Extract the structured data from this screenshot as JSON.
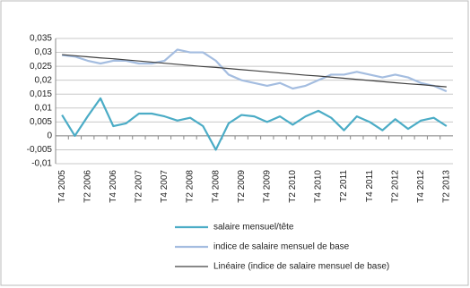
{
  "chart_data": {
    "type": "line",
    "categories": [
      "T4 2005",
      null,
      "T2 2006",
      null,
      "T4 2006",
      null,
      "T2 2007",
      null,
      "T4 2007",
      null,
      "T2 2008",
      null,
      "T4 2008",
      null,
      "T2 2009",
      null,
      "T4 2009",
      null,
      "T2 2010",
      null,
      "T4 2010",
      null,
      "T2 2011",
      null,
      "T4 2011",
      null,
      "T2 2012",
      null,
      "T4 2012",
      null,
      "T2 2013"
    ],
    "series": [
      {
        "name": "salaire mensuel/tête",
        "color": "#4bacc6",
        "values": [
          0.0075,
          0,
          0.007,
          0.0135,
          0.0035,
          0.0045,
          0.008,
          0.008,
          0.007,
          0.0055,
          0.0065,
          0.0035,
          -0.005,
          0.0045,
          0.0075,
          0.007,
          0.005,
          0.007,
          0.004,
          0.007,
          0.009,
          0.0065,
          0.002,
          0.007,
          0.005,
          0.002,
          0.006,
          0.0025,
          0.0055,
          0.0065,
          0.0035
        ]
      },
      {
        "name": "indice de salaire mensuel de base",
        "color": "#a4bde0",
        "values": [
          0.029,
          0.0285,
          0.027,
          0.026,
          0.027,
          0.027,
          0.026,
          0.026,
          0.027,
          0.031,
          0.03,
          0.03,
          0.027,
          0.022,
          0.02,
          0.019,
          0.018,
          0.019,
          0.017,
          0.018,
          0.02,
          0.022,
          0.022,
          0.023,
          0.022,
          0.021,
          0.022,
          0.021,
          0.019,
          0.018,
          0.016
        ]
      },
      {
        "name": "Linéaire (indice de salaire mensuel de base)",
        "color": "#404040",
        "values": [
          0.0292,
          0.0288,
          0.0284,
          0.028,
          0.0277,
          0.0273,
          0.0269,
          0.0265,
          0.0261,
          0.0257,
          0.0253,
          0.0249,
          0.0246,
          0.0242,
          0.0238,
          0.0234,
          0.023,
          0.0226,
          0.0222,
          0.0218,
          0.0215,
          0.0211,
          0.0207,
          0.0203,
          0.0199,
          0.0195,
          0.0191,
          0.0187,
          0.0184,
          0.018,
          0.0176
        ]
      }
    ],
    "ylim": [
      -0.01,
      0.035
    ],
    "yticks": [
      {
        "value": -0.01,
        "label": "-0,01"
      },
      {
        "value": -0.005,
        "label": "-0,005"
      },
      0,
      {
        "value": 0.005,
        "label": "0,005"
      },
      {
        "value": 0.01,
        "label": "0,01"
      },
      {
        "value": 0.015,
        "label": "0,015"
      },
      {
        "value": 0.02,
        "label": "0,02"
      },
      {
        "value": 0.025,
        "label": "0,025"
      },
      {
        "value": 0.03,
        "label": "0,03"
      },
      {
        "value": 0.035,
        "label": "0,035"
      }
    ],
    "grid": true,
    "legend": "bottom"
  }
}
